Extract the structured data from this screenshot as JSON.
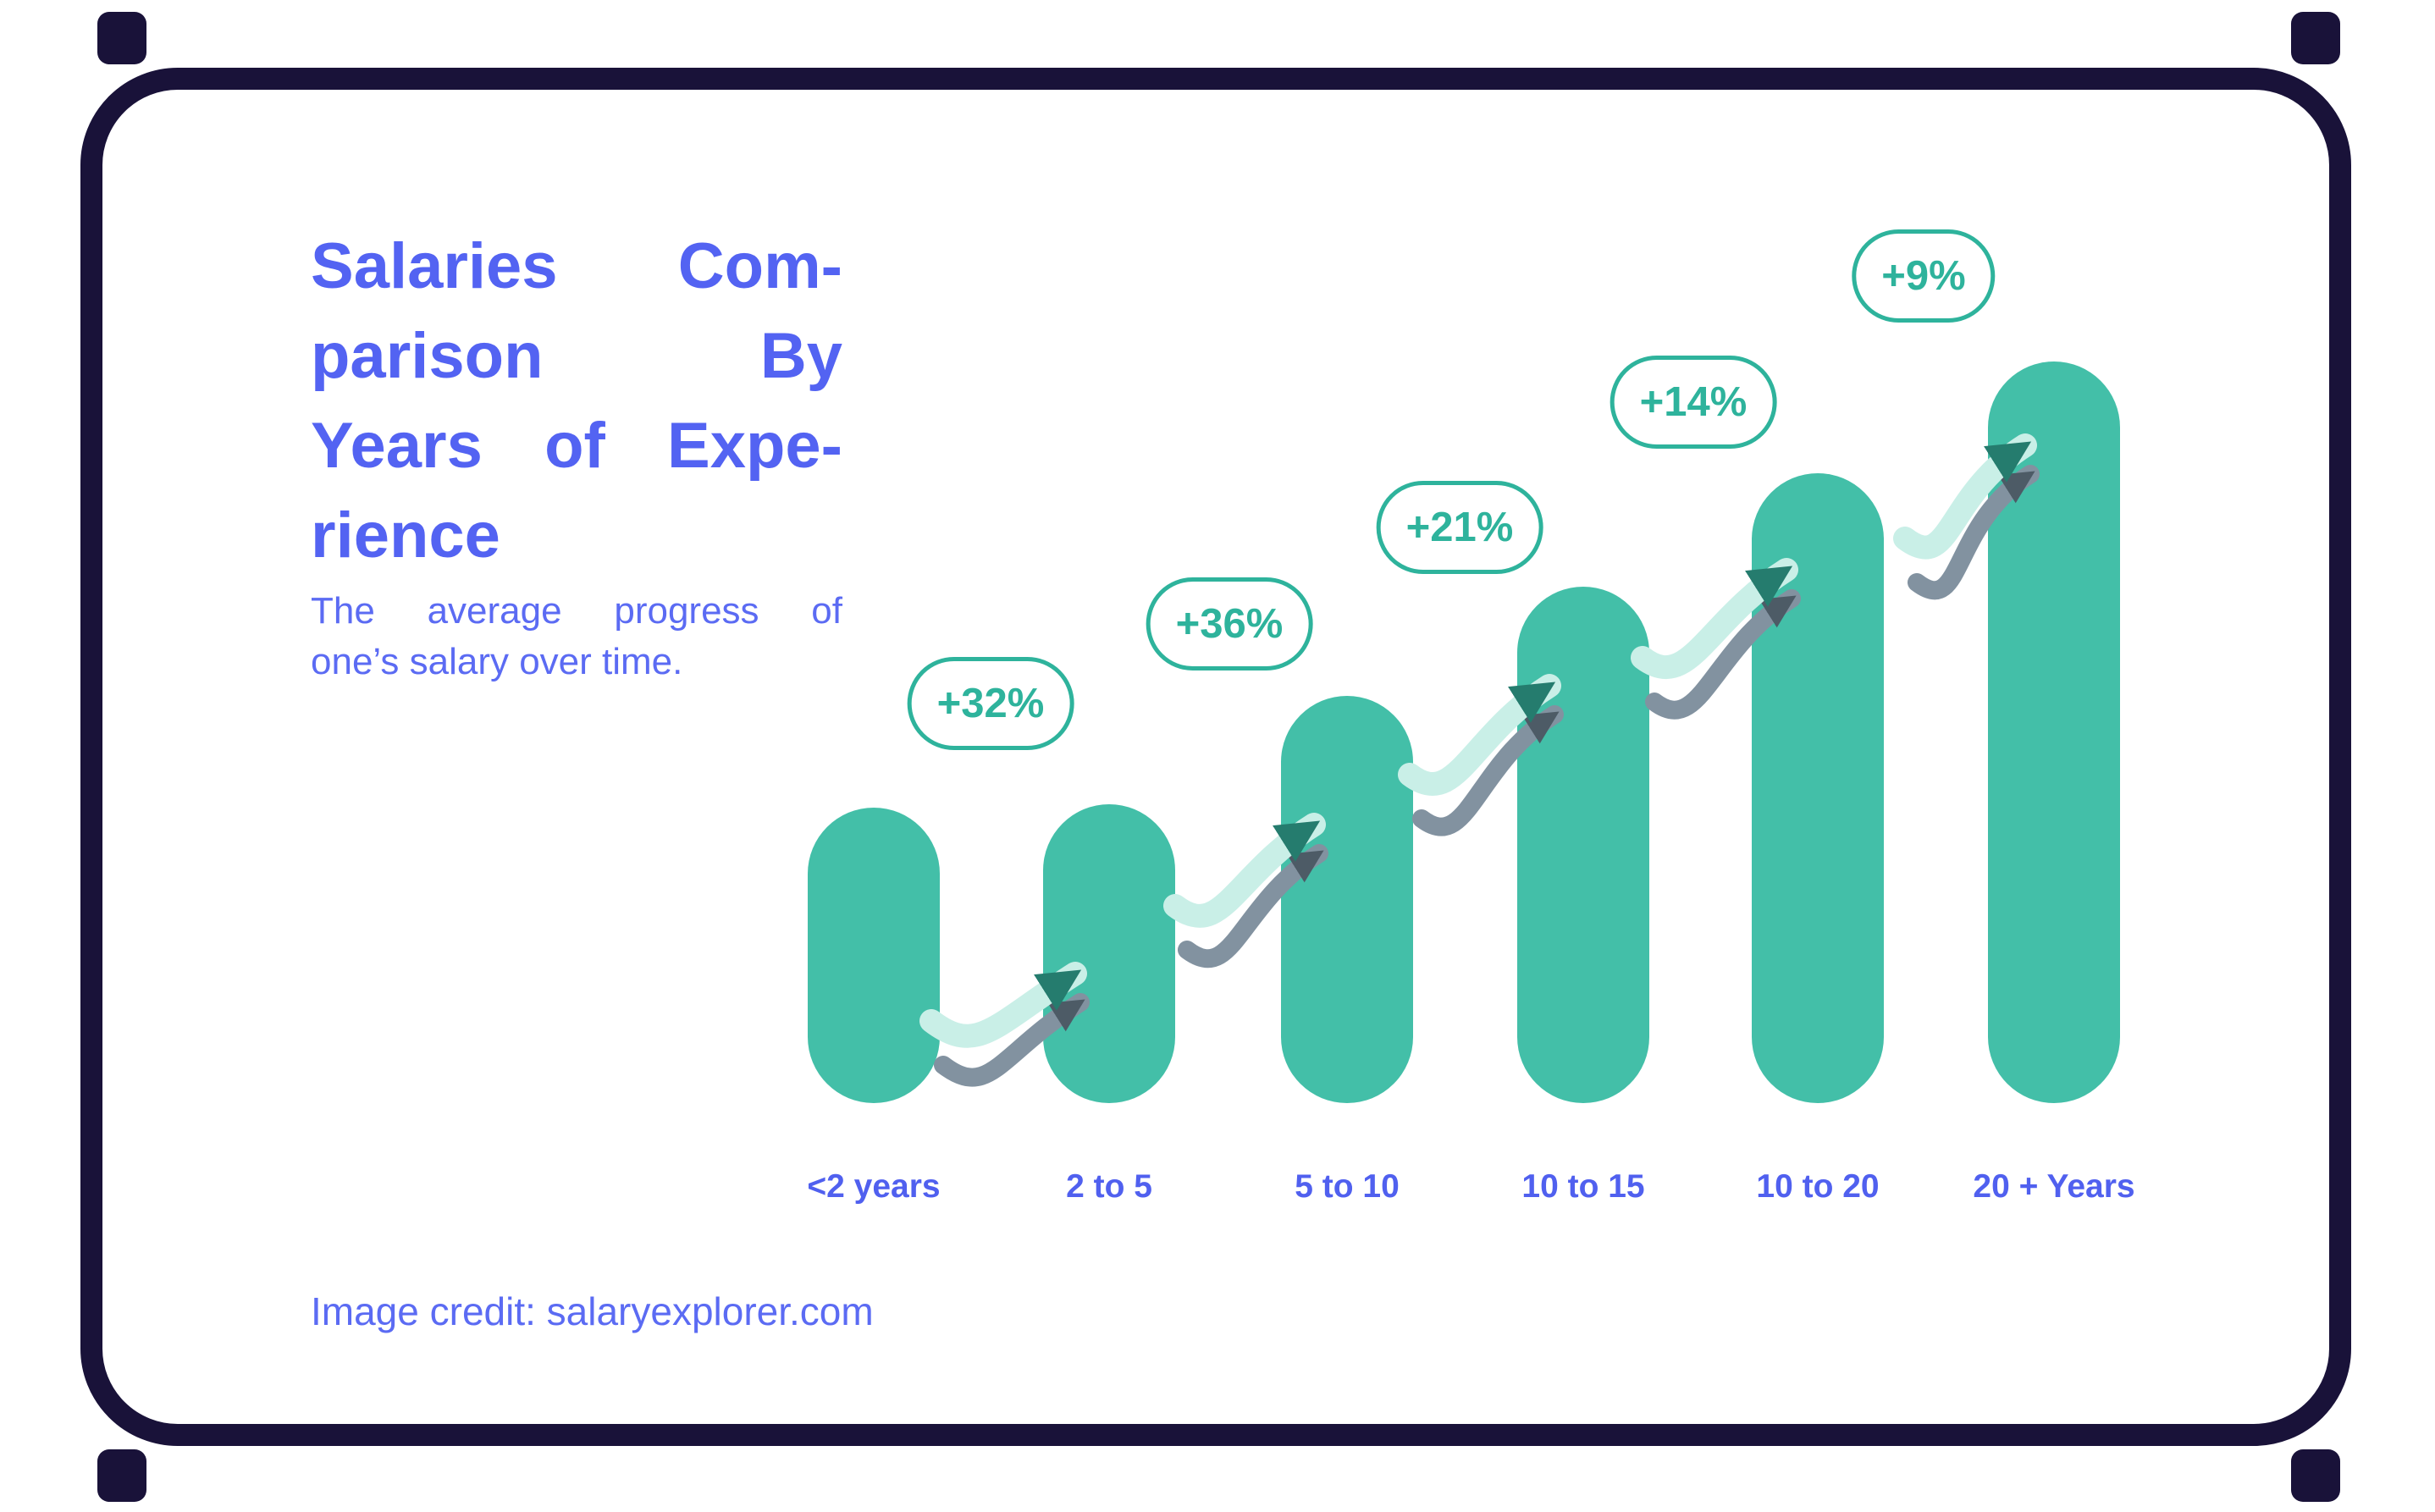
{
  "card": {
    "title_lines": [
      "Salaries Com-",
      "parison By",
      "Years of Expe-",
      "rience"
    ],
    "subtitle_lines": [
      "The average progress of",
      "one’s salary over time."
    ],
    "credit": "Image credit: salaryexplorer.com"
  },
  "colors": {
    "accent_blue": "#5363F2",
    "bar_teal": "#43BFA8",
    "badge_teal": "#2EB39C",
    "arrow_mint": "#C9EFE7",
    "arrow_mint_head": "#257C6E",
    "arrow_gray": "#8292A0",
    "arrow_gray_head": "#4D5B66",
    "border_navy": "#191239"
  },
  "chart_data": {
    "type": "bar",
    "title": "Salaries Comparison By Years of Experience",
    "subtitle": "The average progress of one’s salary over time.",
    "categories": [
      "<2 years",
      "2 to 5",
      "5 to 10",
      "10 to 15",
      "10 to 20",
      "20 + Years"
    ],
    "values": [
      349,
      353,
      481,
      610,
      744,
      876
    ],
    "values_note": "schematic bar heights in px as drawn; bars depict rising salary, not exact scale",
    "increases": [
      {
        "from": "<2 years",
        "to": "2 to 5",
        "label": "+32%"
      },
      {
        "from": "2 to 5",
        "to": "5 to 10",
        "label": "+36%"
      },
      {
        "from": "5 to 10",
        "to": "10 to 15",
        "label": "+21%"
      },
      {
        "from": "10 to 15",
        "to": "10 to 20",
        "label": "+14%"
      },
      {
        "from": "10 to 20",
        "to": "20 + Years",
        "label": "+9%"
      }
    ],
    "xlabel": "",
    "ylabel": "",
    "legend": "none",
    "grid": false
  }
}
